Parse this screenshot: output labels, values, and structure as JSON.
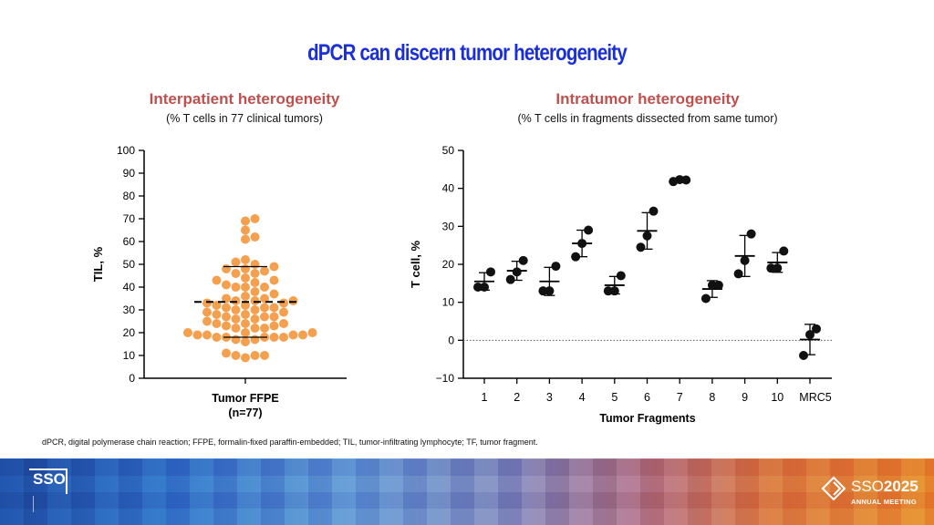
{
  "title": "dPCR can discern tumor heterogeneity",
  "left_panel": {
    "heading": "Interpatient heterogeneity",
    "subheading": "(% T cells in 77 clinical tumors)"
  },
  "right_panel": {
    "heading": "Intratumor heterogeneity",
    "subheading": "(% T cells in fragments dissected from same tumor)"
  },
  "footnote": "dPCR, digital polymerase chain reaction; FFPE, formalin-fixed paraffin-embedded; TIL, tumor-infiltrating lymphocyte; TF, tumor fragment.",
  "logos": {
    "left": "SSO",
    "right_name_prefix": "SSO",
    "right_name_year": "2025",
    "right_meeting": "ANNUAL MEETING"
  },
  "colors": {
    "title": "#1a2fd6",
    "panel_heading": "#c0504d",
    "dot_orange": "#f5a04f",
    "dot_black": "#111111"
  },
  "chart_data": [
    {
      "type": "scatter",
      "ylabel": "TIL, %",
      "ylim": [
        0,
        100
      ],
      "yticks": [
        0,
        10,
        20,
        30,
        40,
        50,
        60,
        70,
        80,
        90,
        100
      ],
      "categories": [
        "Tumor FFPE"
      ],
      "category_label_line1": "Tumor FFPE",
      "category_label_line2": "(n=77)",
      "mean_line": 33.5,
      "sd_lower": 18,
      "sd_upper": 49,
      "values": [
        10,
        10,
        10,
        11,
        9,
        17,
        17,
        16,
        18,
        18,
        18,
        19,
        19,
        19,
        19,
        20,
        20,
        20,
        18,
        18,
        22,
        22,
        22,
        23,
        23,
        24,
        24,
        24,
        25,
        26,
        26,
        27,
        27,
        27,
        28,
        28,
        29,
        29,
        30,
        30,
        31,
        31,
        31,
        32,
        32,
        33,
        33,
        34,
        34,
        34,
        35,
        35,
        36,
        37,
        38,
        40,
        40,
        40,
        41,
        42,
        43,
        43,
        44,
        46,
        46,
        47,
        48,
        48,
        49,
        50,
        51,
        52,
        61,
        62,
        65,
        69,
        70
      ]
    },
    {
      "type": "scatter",
      "ylabel": "T cell, %",
      "xlabel": "Tumor Fragments",
      "ylim": [
        -10,
        50
      ],
      "yticks": [
        -10,
        0,
        10,
        20,
        30,
        40,
        50
      ],
      "ytick_labels": [
        "−10",
        "0",
        "10",
        "20",
        "30",
        "40",
        "50"
      ],
      "reference_line": 0,
      "categories": [
        "1",
        "2",
        "3",
        "4",
        "5",
        "6",
        "7",
        "8",
        "9",
        "10",
        "MRC5"
      ],
      "series": [
        {
          "values": [
            [
              14,
              14,
              18
            ],
            [
              16,
              18,
              21
            ],
            [
              13,
              13,
              19.5
            ],
            [
              22,
              25.5,
              29
            ],
            [
              13,
              13,
              17
            ],
            [
              24.5,
              27.5,
              34
            ],
            [
              41.8,
              42.3,
              42.2
            ],
            [
              11,
              14.5,
              14.5
            ],
            [
              17.5,
              21,
              28
            ],
            [
              19,
              19,
              23.5
            ],
            [
              -4,
              1.5,
              3
            ]
          ]
        }
      ],
      "means": [
        15.5,
        18.3,
        15.5,
        25.5,
        14.5,
        28.8,
        42.1,
        13.5,
        22.2,
        20.5,
        0.2
      ],
      "sd": [
        2.3,
        2.5,
        3.7,
        3.5,
        2.3,
        4.8,
        0.3,
        2.2,
        5.4,
        2.6,
        4.0
      ]
    }
  ]
}
